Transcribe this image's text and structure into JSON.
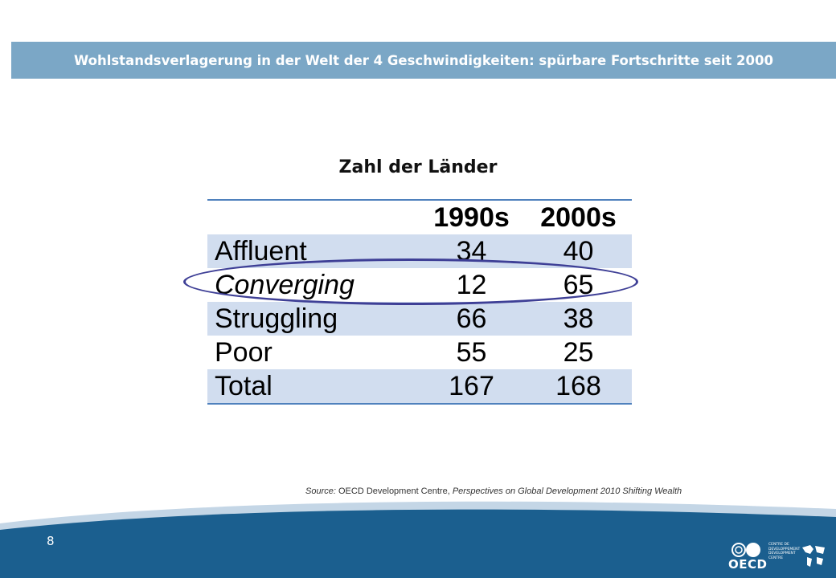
{
  "header": {
    "title": "Wohlstandsverlagerung in der Welt der 4 Geschwindigkeiten: spürbare Fortschritte seit 2000"
  },
  "table": {
    "caption": "Zahl der Länder",
    "columns": [
      "",
      "1990s",
      "2000s"
    ],
    "rows": [
      {
        "label": "Affluent",
        "v1990s": "34",
        "v2000s": "40"
      },
      {
        "label": "Converging",
        "v1990s": "12",
        "v2000s": "65"
      },
      {
        "label": "Struggling",
        "v1990s": "66",
        "v2000s": "38"
      },
      {
        "label": "Poor",
        "v1990s": "55",
        "v2000s": "25"
      },
      {
        "label": "Total",
        "v1990s": "167",
        "v2000s": "168"
      }
    ],
    "highlighted_row": "Converging"
  },
  "source": {
    "prefix": "Source:",
    "org": " OECD Development Centre, ",
    "publication": "Perspectives on Global Development 2010 Shifting Wealth"
  },
  "footer": {
    "page_number": "8",
    "logo_text": "OECD",
    "logo_subtext": "CENTRE DE DEVELOPPEMENT DEVELOPMENT CENTRE"
  },
  "colors": {
    "title_bar": "#7ba7c6",
    "footer_dark": "#1b5f8f",
    "footer_light": "#c4d6e6",
    "table_band": "#d1ddef",
    "table_rule": "#4f81bd",
    "ellipse": "#3e3f96"
  }
}
